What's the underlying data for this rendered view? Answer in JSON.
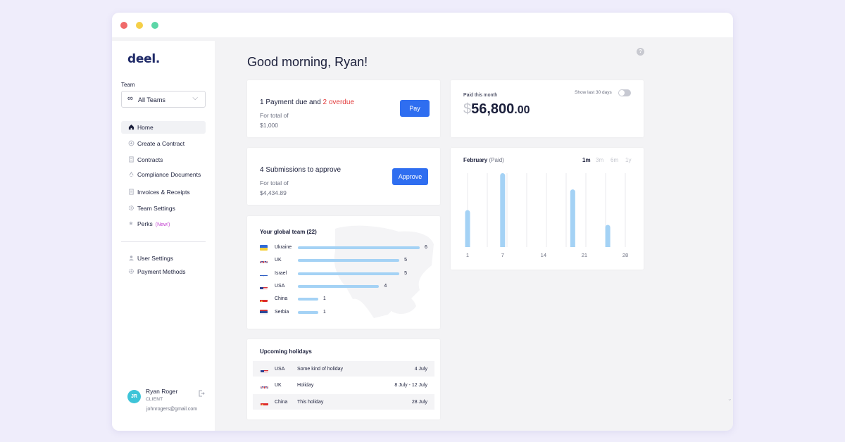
{
  "window": {
    "dots": [
      "#f06a6a",
      "#f5cf47",
      "#5cd6a7"
    ]
  },
  "sidebar": {
    "logo": "deel.",
    "team_label": "Team",
    "team_value": "All Teams",
    "nav": [
      {
        "label": "Home",
        "icon": "home-icon"
      },
      {
        "label": "Create a Contract",
        "icon": "plus-circle-icon"
      },
      {
        "label": "Contracts",
        "icon": "document-icon"
      },
      {
        "label": "Compliance Documents",
        "icon": "shield-icon"
      },
      {
        "label": "Invoices & Receipts",
        "icon": "receipt-icon"
      },
      {
        "label": "Team Settings",
        "icon": "gear-icon"
      },
      {
        "label": "Perks",
        "icon": "star-icon",
        "badge": "(New!)"
      }
    ],
    "nav_secondary": [
      {
        "label": "User Settings",
        "icon": "user-icon"
      },
      {
        "label": "Payment Methods",
        "icon": "card-icon"
      }
    ],
    "user": {
      "initials": "JR",
      "name": "Ryan Roger",
      "role": "CLIENT",
      "email": "johnrogers@gmail.com"
    }
  },
  "main": {
    "greeting": "Good morning, Ryan!",
    "payments": {
      "title_prefix": "1 Payment due and",
      "title_overdue": "2 overdue",
      "subtitle": "For total of",
      "amount": "$1,000",
      "button": "Pay"
    },
    "submissions": {
      "title": "4 Submissions to approve",
      "subtitle": "For total of",
      "amount": "$4,434.89",
      "button": "Approve"
    },
    "paid_this_month": {
      "label": "Paid this month",
      "toggle_label": "Show last 30 days",
      "currency": "$",
      "whole": "56,800",
      "cents": ".00"
    },
    "global_team": {
      "title": "Your global team (22)",
      "rows": [
        {
          "country": "Ukraine",
          "count": 6
        },
        {
          "country": "UK",
          "count": 5
        },
        {
          "country": "Israel",
          "count": 5
        },
        {
          "country": "USA",
          "count": 4
        },
        {
          "country": "China",
          "count": 1
        },
        {
          "country": "Serbia",
          "count": 1
        }
      ]
    },
    "holidays": {
      "title": "Upcoming holidays",
      "rows": [
        {
          "country": "USA",
          "name": "Some kind of holiday",
          "date": "4 July"
        },
        {
          "country": "UK",
          "name": "Holiday",
          "date": "8 July - 12 July"
        },
        {
          "country": "China",
          "name": "This holiday",
          "date": "28 July"
        }
      ]
    }
  },
  "chart_data": {
    "type": "bar",
    "title": "February",
    "subtitle": "(Paid)",
    "ranges": [
      "1m",
      "3m",
      "6m",
      "1y"
    ],
    "active_range": "1m",
    "xlabel": "",
    "ylabel": "",
    "x_ticks": [
      "1",
      "7",
      "14",
      "21",
      "28"
    ],
    "xlim": [
      1,
      28
    ],
    "ylim": [
      0,
      100
    ],
    "x": [
      1,
      7,
      19,
      25
    ],
    "values": [
      50,
      100,
      78,
      30
    ],
    "bar_color": "#a4d2f5",
    "grid": true
  }
}
